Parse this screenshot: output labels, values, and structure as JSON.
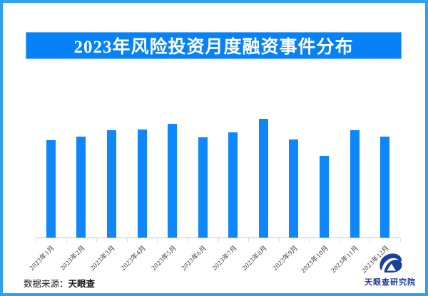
{
  "frame": {
    "border_color": "#2EA2F2",
    "background": "#FFFFFF"
  },
  "banner": {
    "title": "2023年风险投资月度融资事件分布",
    "bg_color": "#0682F6",
    "text_color": "#FFFFFF"
  },
  "chart_data": {
    "type": "bar",
    "title": "2023年风险投资月度融资事件分布",
    "categories": [
      "2023年1月",
      "2023年2月",
      "2023年3月",
      "2023年4月",
      "2023年5月",
      "2023年6月",
      "2023年7月",
      "2023年8月",
      "2023年9月",
      "2023年10月",
      "2023年11月",
      "2023年12月"
    ],
    "values": [
      137,
      142,
      151,
      152,
      160,
      141,
      148,
      167,
      138,
      115,
      151,
      142
    ],
    "value_note": "no numeric axis or data labels shown in chart; values are relative bar heights estimated in pixels",
    "xlabel": "",
    "ylabel": "",
    "ylim": [
      0,
      170
    ],
    "grid": false,
    "legend": false,
    "bar_color": "#0D87FA",
    "axis_line_color": "#E5E5E5",
    "tick_color": "#DCDCDC",
    "tick_label_color": "#3D3D3D"
  },
  "footer": {
    "source_prefix": "数据来源：",
    "source_name": "天眼查",
    "logo_text": "天眼查研究院",
    "logo_color": "#1C3F97"
  }
}
